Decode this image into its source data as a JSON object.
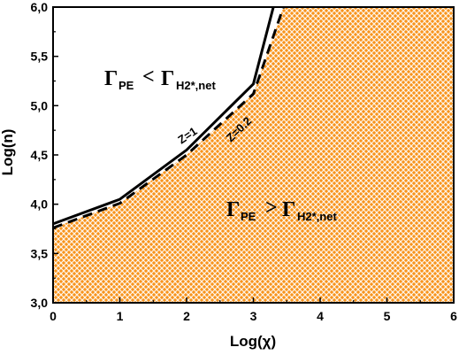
{
  "chart_data": {
    "type": "area",
    "xlabel": "Log(χ)",
    "ylabel": "Log(n)",
    "xlim": [
      0,
      6
    ],
    "ylim": [
      3.0,
      6.0
    ],
    "x_ticks": [
      "0",
      "1",
      "2",
      "3",
      "4",
      "5",
      "6"
    ],
    "y_ticks": [
      "3,0",
      "3,5",
      "4,0",
      "4,5",
      "5,0",
      "5,5",
      "6,0"
    ],
    "fill_color": "#f7941d",
    "grid": false,
    "series": [
      {
        "name": "Z=1",
        "style": "solid",
        "points": [
          [
            0,
            3.8
          ],
          [
            1,
            4.05
          ],
          [
            2,
            4.55
          ],
          [
            3,
            5.22
          ],
          [
            3.3,
            6.0
          ]
        ]
      },
      {
        "name": "Z=0.2",
        "style": "dashed",
        "points": [
          [
            0,
            3.76
          ],
          [
            1,
            4.01
          ],
          [
            2,
            4.5
          ],
          [
            3,
            5.12
          ],
          [
            3.45,
            6.0
          ]
        ]
      }
    ],
    "shaded_region_boundary": "Z=0.2",
    "annotations": {
      "upper": {
        "main": "ΓPE < ΓH2*,net",
        "pe": "Γ",
        "pe_sub": "PE",
        "op": "<",
        "h": "Γ",
        "h_sub": "H2*,net"
      },
      "lower": {
        "main": "ΓPE > ΓH2*,net",
        "pe": "Γ",
        "pe_sub": "PE",
        "op": ">",
        "h": "Γ",
        "h_sub": "H2*,net"
      }
    }
  }
}
